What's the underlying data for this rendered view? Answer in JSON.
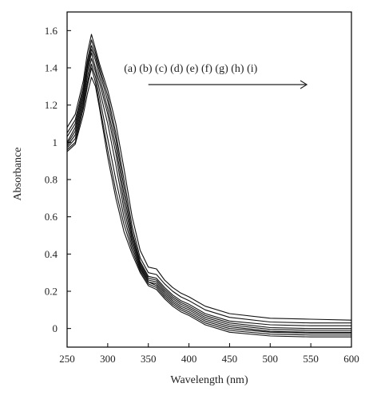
{
  "chart_data": {
    "type": "line",
    "title": "",
    "xlabel": "Wavelength (nm)",
    "ylabel": "Absorbance",
    "xlim": [
      250,
      600
    ],
    "ylim": [
      -0.1,
      1.7
    ],
    "xticks": [
      250,
      300,
      350,
      400,
      450,
      500,
      550,
      600
    ],
    "yticks": [
      0,
      0.2,
      0.4,
      0.6,
      0.8,
      1,
      1.2,
      1.4,
      1.6
    ],
    "ytick_labels": [
      "0",
      "0.2",
      "0.4",
      "0.6",
      "0.8",
      "1",
      "1.2",
      "1.4",
      "1.6"
    ],
    "grid": false,
    "annotation": {
      "text": "(a) (b) (c) (d) (e) (f) (g) (h) (i)",
      "arrow_from_x": 350,
      "arrow_to_x": 545,
      "arrow_y": 1.31,
      "text_x": 320,
      "text_y": 1.4
    },
    "x": [
      250,
      260,
      270,
      275,
      280,
      285,
      290,
      300,
      310,
      320,
      330,
      340,
      350,
      360,
      370,
      380,
      390,
      400,
      420,
      450,
      500,
      550,
      600
    ],
    "series": [
      {
        "values": [
          1.08,
          1.15,
          1.33,
          1.48,
          1.58,
          1.5,
          1.42,
          1.28,
          1.1,
          0.86,
          0.6,
          0.42,
          0.33,
          0.32,
          0.26,
          0.22,
          0.19,
          0.17,
          0.12,
          0.08,
          0.055,
          0.05,
          0.045
        ]
      },
      {
        "values": [
          1.05,
          1.12,
          1.3,
          1.44,
          1.55,
          1.48,
          1.4,
          1.25,
          1.05,
          0.8,
          0.55,
          0.38,
          0.3,
          0.29,
          0.24,
          0.2,
          0.17,
          0.15,
          0.1,
          0.06,
          0.035,
          0.03,
          0.03
        ]
      },
      {
        "values": [
          1.03,
          1.1,
          1.28,
          1.42,
          1.52,
          1.46,
          1.38,
          1.22,
          1.02,
          0.76,
          0.52,
          0.36,
          0.28,
          0.27,
          0.22,
          0.18,
          0.15,
          0.13,
          0.08,
          0.04,
          0.02,
          0.015,
          0.015
        ]
      },
      {
        "values": [
          1.0,
          1.08,
          1.26,
          1.4,
          1.5,
          1.44,
          1.35,
          1.18,
          0.98,
          0.72,
          0.5,
          0.35,
          0.27,
          0.26,
          0.21,
          0.17,
          0.14,
          0.12,
          0.07,
          0.03,
          0.005,
          0.0,
          0.0
        ]
      },
      {
        "values": [
          0.99,
          1.06,
          1.24,
          1.38,
          1.48,
          1.4,
          1.32,
          1.15,
          0.94,
          0.68,
          0.48,
          0.34,
          0.26,
          0.25,
          0.2,
          0.16,
          0.13,
          0.11,
          0.06,
          0.02,
          -0.005,
          -0.01,
          -0.01
        ]
      },
      {
        "values": [
          0.98,
          1.04,
          1.22,
          1.35,
          1.45,
          1.38,
          1.28,
          1.1,
          0.88,
          0.64,
          0.46,
          0.33,
          0.25,
          0.24,
          0.19,
          0.15,
          0.12,
          0.1,
          0.05,
          0.01,
          -0.015,
          -0.02,
          -0.02
        ]
      },
      {
        "values": [
          0.97,
          1.02,
          1.2,
          1.32,
          1.42,
          1.35,
          1.24,
          1.02,
          0.8,
          0.6,
          0.44,
          0.32,
          0.25,
          0.23,
          0.18,
          0.14,
          0.11,
          0.09,
          0.04,
          0.0,
          -0.02,
          -0.025,
          -0.025
        ]
      },
      {
        "values": [
          0.96,
          1.0,
          1.18,
          1.3,
          1.4,
          1.32,
          1.2,
          0.96,
          0.74,
          0.56,
          0.42,
          0.31,
          0.24,
          0.22,
          0.17,
          0.13,
          0.1,
          0.08,
          0.03,
          -0.01,
          -0.03,
          -0.035,
          -0.035
        ]
      },
      {
        "values": [
          0.95,
          0.99,
          1.15,
          1.26,
          1.35,
          1.3,
          1.18,
          0.92,
          0.7,
          0.52,
          0.4,
          0.3,
          0.23,
          0.21,
          0.16,
          0.12,
          0.09,
          0.07,
          0.02,
          -0.02,
          -0.04,
          -0.045,
          -0.045
        ]
      }
    ]
  }
}
